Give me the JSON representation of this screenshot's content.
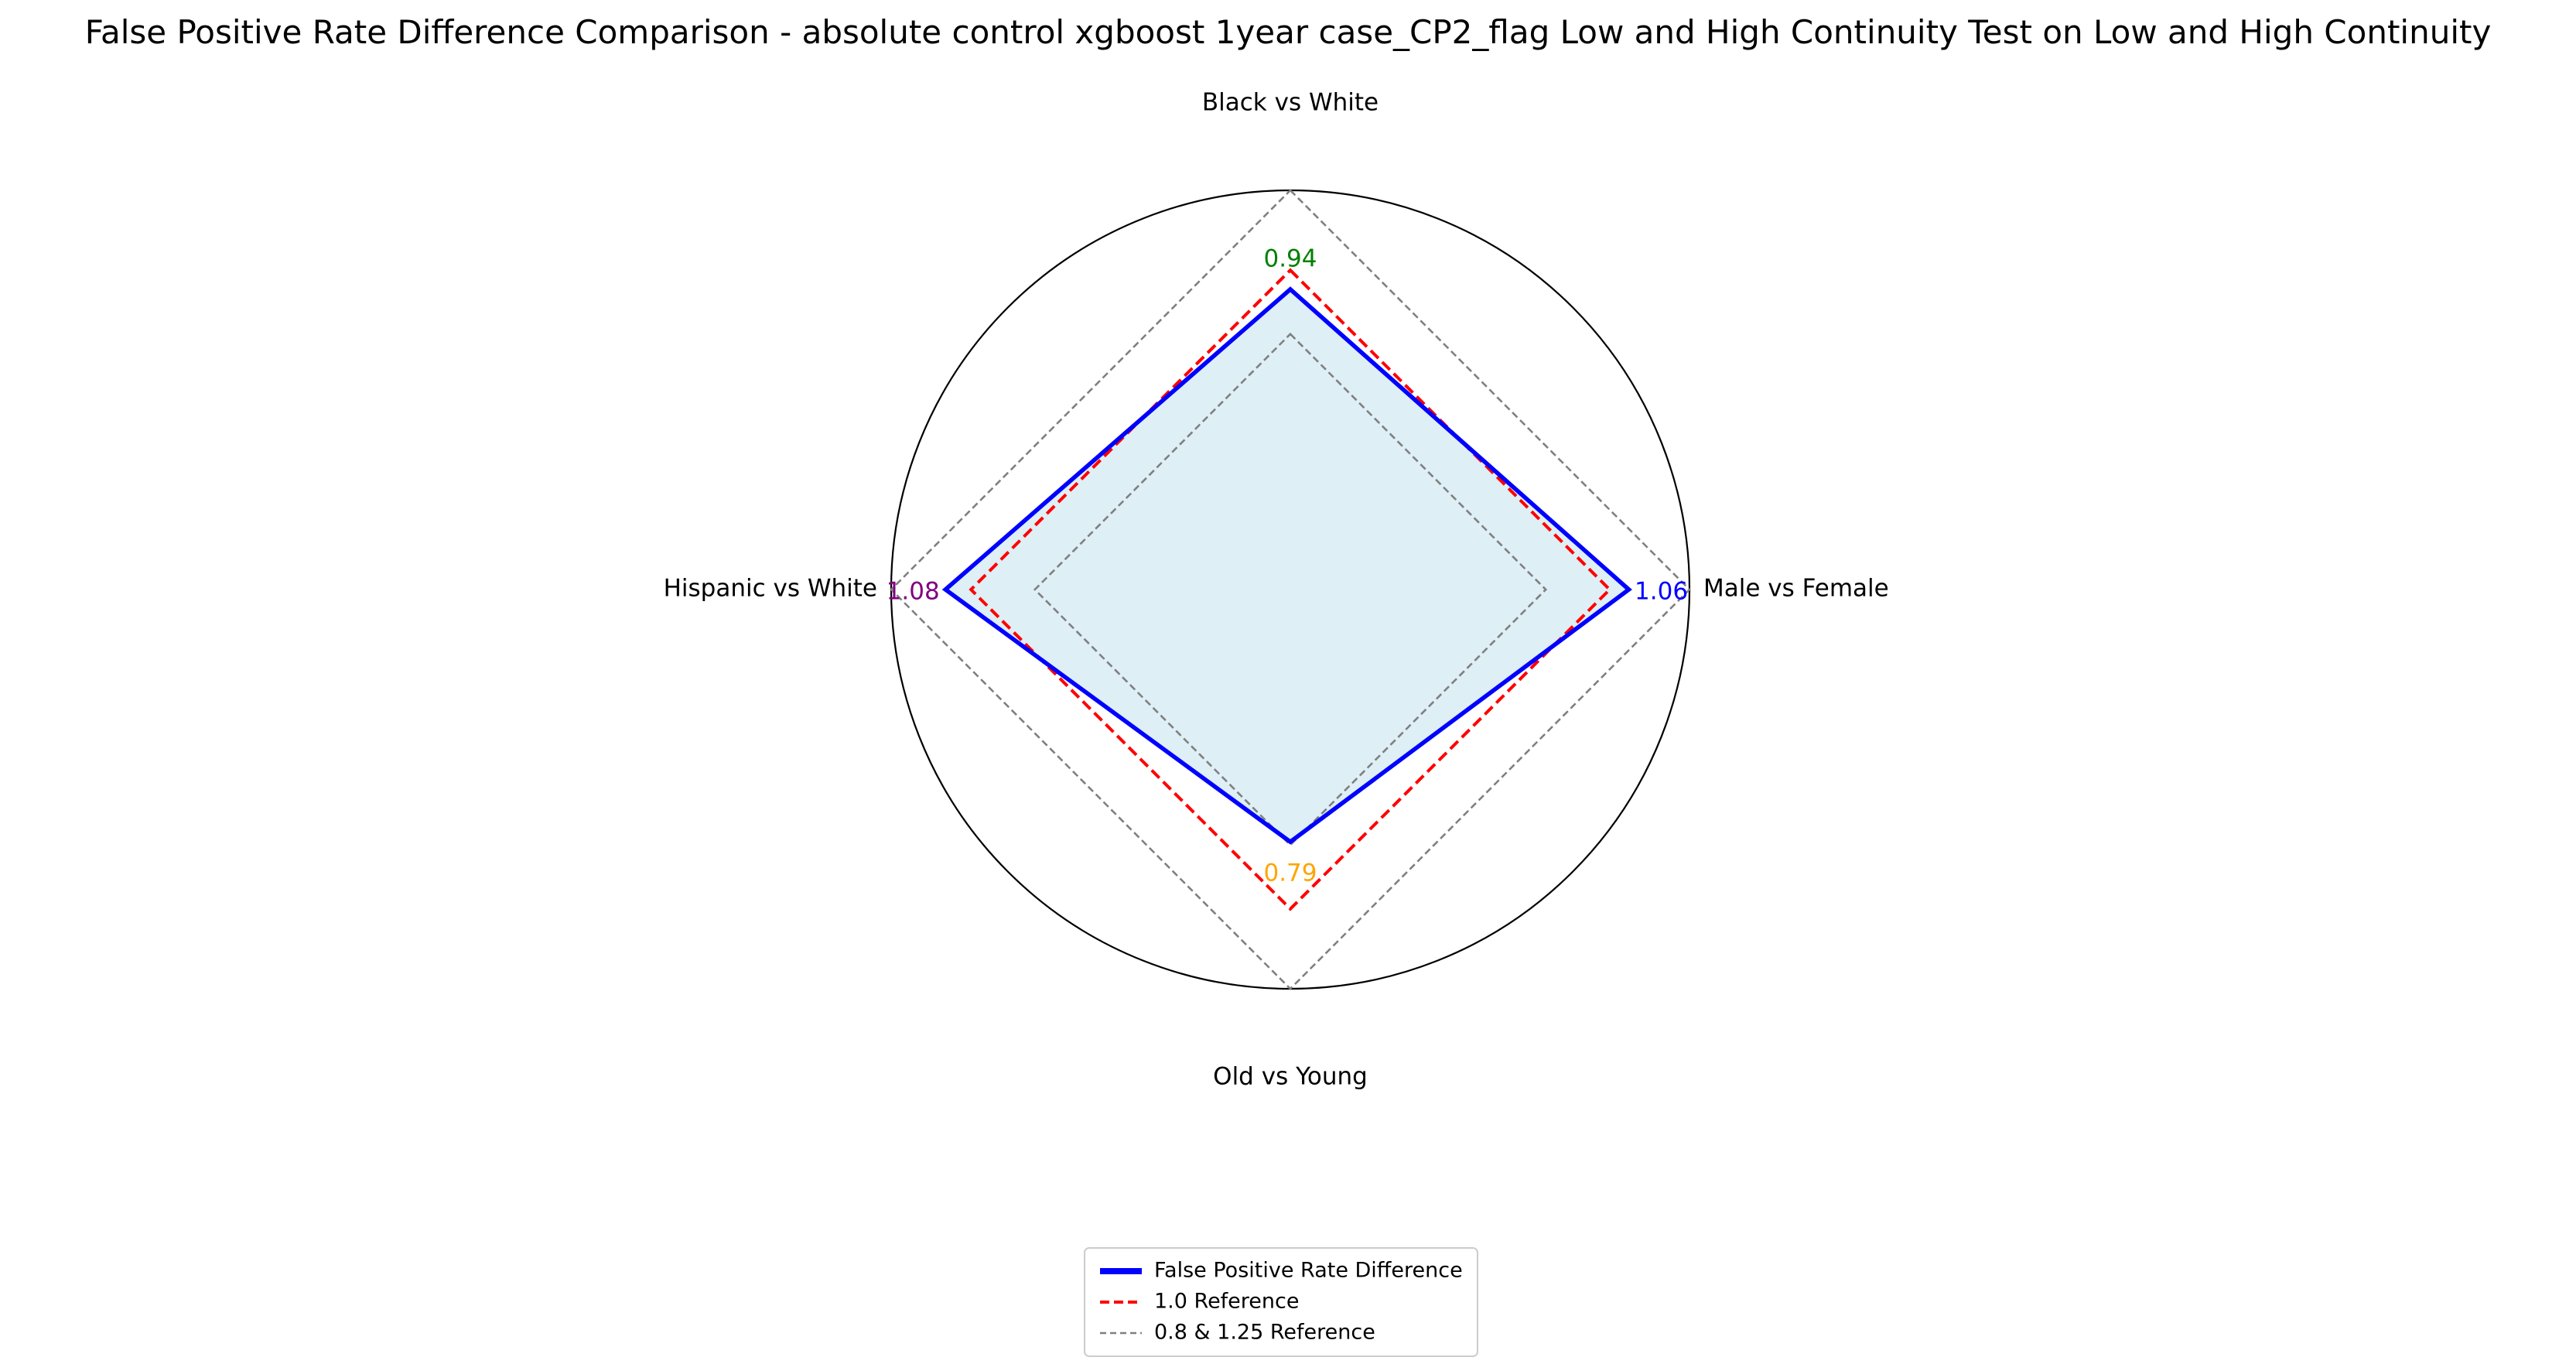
{
  "chart_data": {
    "type": "radar",
    "title": "False Positive Rate Difference Comparison - absolute control xgboost 1year case_CP2_flag Low and High Continuity Test on Low and High Continuity",
    "categories": [
      "Black vs White",
      "Male vs Female",
      "Old vs Young",
      "Hispanic vs White"
    ],
    "series": [
      {
        "name": "False Positive Rate Difference",
        "values": [
          0.94,
          1.06,
          0.79,
          1.08
        ],
        "color": "#0000ff",
        "fill": "#add8e6"
      }
    ],
    "value_labels": [
      "0.94",
      "1.06",
      "0.79",
      "1.08"
    ],
    "value_label_colors": [
      "#008000",
      "#0000ff",
      "#ffa500",
      "#800080"
    ],
    "reference_lines": [
      {
        "value": 1.0,
        "color": "#ff0000",
        "style": "dashed"
      },
      {
        "value": 0.8,
        "color": "#808080",
        "style": "dashed"
      },
      {
        "value": 1.25,
        "color": "#808080",
        "style": "dashed"
      }
    ],
    "rlim": [
      0,
      1.25
    ],
    "legend": {
      "placement": "bottom-center",
      "entries": [
        {
          "label": "False Positive Rate Difference",
          "color": "#0000ff",
          "style": "solid"
        },
        {
          "label": "1.0 Reference",
          "color": "#ff0000",
          "style": "dashed"
        },
        {
          "label": "0.8 & 1.25 Reference",
          "color": "#808080",
          "style": "dashed"
        }
      ]
    }
  }
}
